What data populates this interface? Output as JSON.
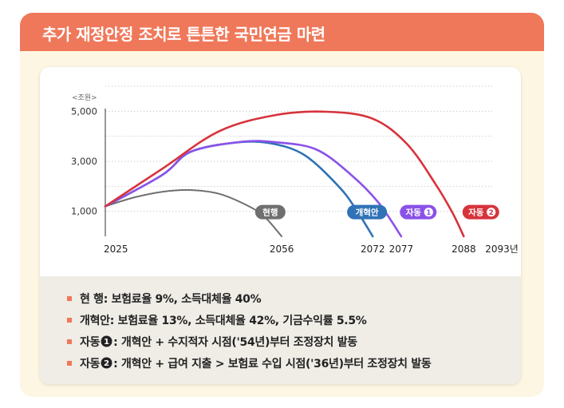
{
  "banner": {
    "title": "추가 재정안정 조치로 튼튼한 국민연금 마련"
  },
  "colors": {
    "banner": "#f0785a",
    "current": "#6f6f6f",
    "reform": "#2f72b6",
    "auto1": "#8a52e8",
    "auto2": "#d7333b"
  },
  "chart_data": {
    "type": "line",
    "unit_label": "<조원>",
    "xlim": [
      2025,
      2093
    ],
    "ylim": [
      0,
      6000
    ],
    "y_ticks": [
      {
        "value": 1000,
        "label": "1,000"
      },
      {
        "value": 3000,
        "label": "3,000"
      },
      {
        "value": 5000,
        "label": "5,000"
      }
    ],
    "x_ticks": [
      {
        "value": 2025,
        "label": "2025"
      },
      {
        "value": 2056,
        "label": "2056"
      },
      {
        "value": 2072,
        "label": "2072"
      },
      {
        "value": 2077,
        "label": "2077"
      },
      {
        "value": 2088,
        "label": "2088"
      },
      {
        "value": 2093,
        "label": "2093년"
      }
    ],
    "grid": "horizontal-dotted",
    "series": [
      {
        "name": "현행",
        "key": "current",
        "color": "#6f6f6f",
        "style": "plain",
        "points": [
          [
            2025,
            1200
          ],
          [
            2030,
            1550
          ],
          [
            2035,
            1780
          ],
          [
            2040,
            1850
          ],
          [
            2045,
            1700
          ],
          [
            2050,
            1230
          ],
          [
            2053,
            780
          ],
          [
            2056,
            0
          ]
        ]
      },
      {
        "name": "개혁안",
        "key": "reform",
        "color": "#2f72b6",
        "style": "plain",
        "points": [
          [
            2025,
            1200
          ],
          [
            2035,
            2450
          ],
          [
            2040,
            3380
          ],
          [
            2048,
            3750
          ],
          [
            2054,
            3720
          ],
          [
            2060,
            3250
          ],
          [
            2066,
            2000
          ],
          [
            2069,
            1100
          ],
          [
            2072,
            0
          ]
        ]
      },
      {
        "name": "자동",
        "marker": "1",
        "key": "auto1",
        "color": "#8a52e8",
        "style": "marker",
        "points": [
          [
            2025,
            1200
          ],
          [
            2035,
            2450
          ],
          [
            2040,
            3380
          ],
          [
            2049,
            3780
          ],
          [
            2055,
            3760
          ],
          [
            2062,
            3480
          ],
          [
            2068,
            2500
          ],
          [
            2073,
            1350
          ],
          [
            2077,
            0
          ]
        ]
      },
      {
        "name": "자동",
        "marker": "2",
        "key": "auto2",
        "color": "#d7333b",
        "style": "marker",
        "points": [
          [
            2025,
            1200
          ],
          [
            2035,
            2700
          ],
          [
            2045,
            4200
          ],
          [
            2055,
            4850
          ],
          [
            2064,
            4980
          ],
          [
            2072,
            4700
          ],
          [
            2078,
            3700
          ],
          [
            2083,
            2100
          ],
          [
            2086,
            950
          ],
          [
            2088,
            0
          ]
        ]
      }
    ],
    "labels": [
      {
        "series": "current",
        "text": "현행",
        "x": 2054,
        "y": 1000
      },
      {
        "series": "reform",
        "text": "개혁안",
        "x": 2071,
        "y": 1000
      },
      {
        "series": "auto1",
        "text": "자동",
        "marker": "1",
        "x": 2080,
        "y": 1000
      },
      {
        "series": "auto2",
        "text": "자동",
        "marker": "2",
        "x": 2091,
        "y": 1000
      }
    ]
  },
  "legend": [
    {
      "label": "현   행",
      "marker": "",
      "description": ": 보험료율 9%, 소득대체율 40%"
    },
    {
      "label": "개혁안",
      "marker": "",
      "description": ": 보험료율 13%, 소득대체율 42%, 기금수익률 5.5%"
    },
    {
      "label": "자동",
      "marker": "1",
      "description": ": 개혁안 + 수지적자 시점('54년)부터 조정장치 발동"
    },
    {
      "label": "자동",
      "marker": "2",
      "description": ": 개혁안 + 급여 지출 > 보험료 수입 시점('36년)부터 조정장치 발동"
    }
  ]
}
